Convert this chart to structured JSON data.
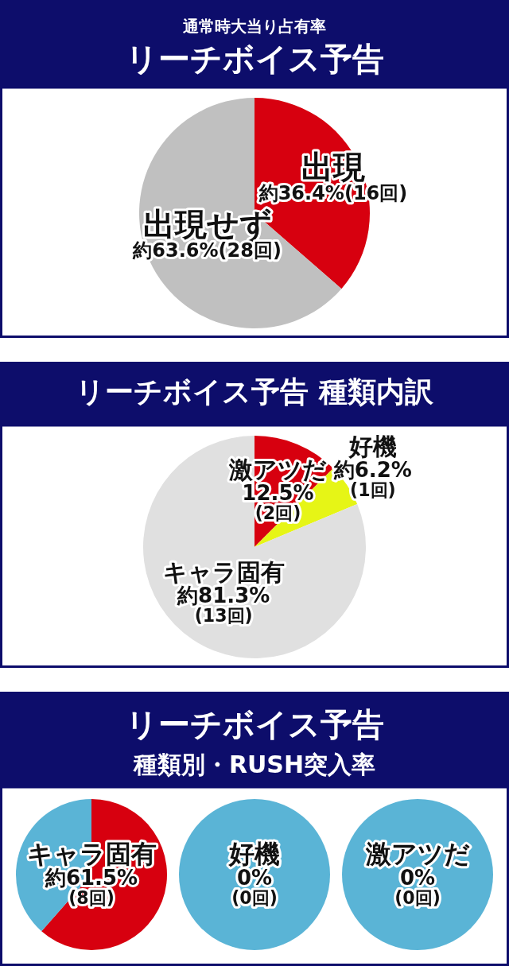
{
  "chart_data": [
    {
      "type": "pie",
      "title": "通常時大当り占有率",
      "subtitle": "リーチボイス予告",
      "categories": [
        "出現",
        "出現せず"
      ],
      "values": [
        36.4,
        63.6
      ],
      "colors": [
        "#d7000f",
        "#c0c0c0"
      ],
      "value_labels": [
        "約36.4%(16回)",
        "約63.6%(28回)"
      ]
    },
    {
      "type": "pie",
      "title": "リーチボイス予告 種類内訳",
      "categories": [
        "激アツだ",
        "好機",
        "キャラ固有"
      ],
      "values": [
        12.5,
        6.2,
        81.3
      ],
      "colors": [
        "#d7000f",
        "#e6f516",
        "#e0e0e0"
      ],
      "value_labels": [
        "12.5%(2回)",
        "約6.2%(1回)",
        "約81.3%(13回)"
      ]
    },
    {
      "type": "pie",
      "title": "リーチボイス予告",
      "subtitle": "種類別・RUSH突入率",
      "annotations": [
        "キャラ固有"
      ],
      "categories": [
        null,
        null
      ],
      "values": [
        61.5,
        38.5
      ],
      "colors": [
        "#d7000f",
        "#5ab4d6"
      ],
      "value_labels": [
        "約61.5%(8回)",
        null
      ]
    },
    {
      "type": "pie",
      "annotations": [
        "好機"
      ],
      "categories": [
        null,
        null
      ],
      "values": [
        0,
        100
      ],
      "colors": [
        "#d7000f",
        "#5ab4d6"
      ],
      "value_labels": [
        "0%(0回)",
        null
      ]
    },
    {
      "type": "pie",
      "annotations": [
        "激アツだ"
      ],
      "categories": [
        null,
        null
      ],
      "values": [
        0,
        100
      ],
      "colors": [
        "#d7000f",
        "#5ab4d6"
      ],
      "value_labels": [
        "0%(0回)",
        null
      ]
    }
  ]
}
